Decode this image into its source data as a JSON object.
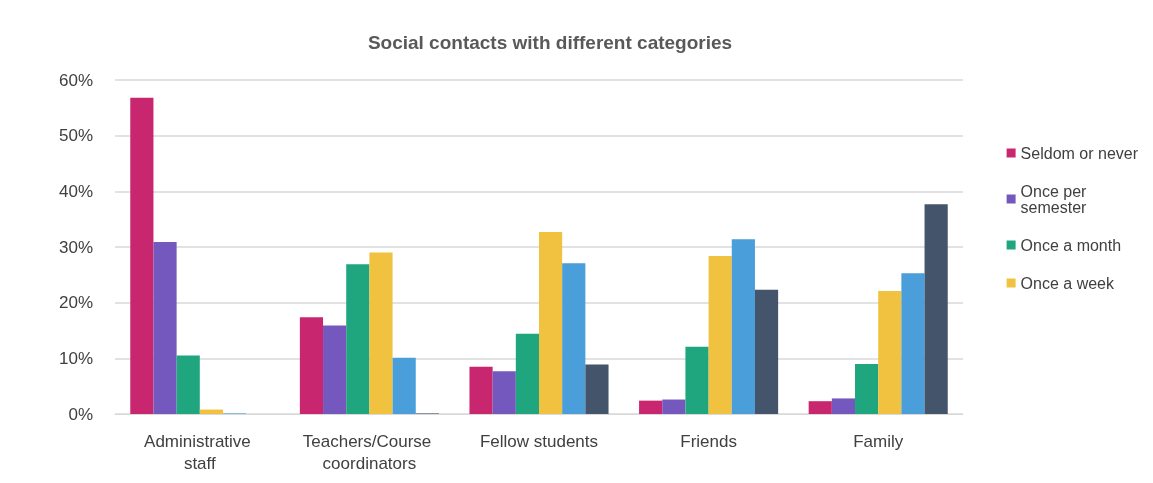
{
  "chart_data": {
    "type": "bar",
    "title": "Social contacts with different categories",
    "categories": [
      "Administrative staff",
      "Teachers/Course coordinators",
      "Fellow students",
      "Friends",
      "Family"
    ],
    "series": [
      {
        "name": "Seldom or never",
        "color": "#c8266e",
        "values": [
          56.8,
          17.4,
          8.5,
          2.4,
          2.3
        ]
      },
      {
        "name": "Once per semester",
        "color": "#7558be",
        "values": [
          30.9,
          15.9,
          7.7,
          2.6,
          2.8
        ]
      },
      {
        "name": "Once a month",
        "color": "#1fa67f",
        "values": [
          10.5,
          26.9,
          14.4,
          12.1,
          9.0
        ]
      },
      {
        "name": "Once a week",
        "color": "#f0c23f",
        "values": [
          0.8,
          29.0,
          32.7,
          28.4,
          22.1
        ]
      },
      {
        "color": "#4a9ed9",
        "values": [
          0.1,
          10.1,
          27.1,
          31.4,
          25.3
        ]
      },
      {
        "color": "#44546a",
        "values": [
          0,
          0.1,
          8.9,
          22.3,
          37.7
        ]
      }
    ],
    "ylim": [
      0,
      60
    ],
    "yticks": [
      {
        "value": 0,
        "label": "0%"
      },
      {
        "value": 10,
        "label": "10%"
      },
      {
        "value": 20,
        "label": "20%"
      },
      {
        "value": 30,
        "label": "30%"
      },
      {
        "value": 40,
        "label": "40%"
      },
      {
        "value": 50,
        "label": "50%"
      },
      {
        "value": 60,
        "label": "60%"
      }
    ],
    "grid": "y",
    "legend": "right"
  }
}
